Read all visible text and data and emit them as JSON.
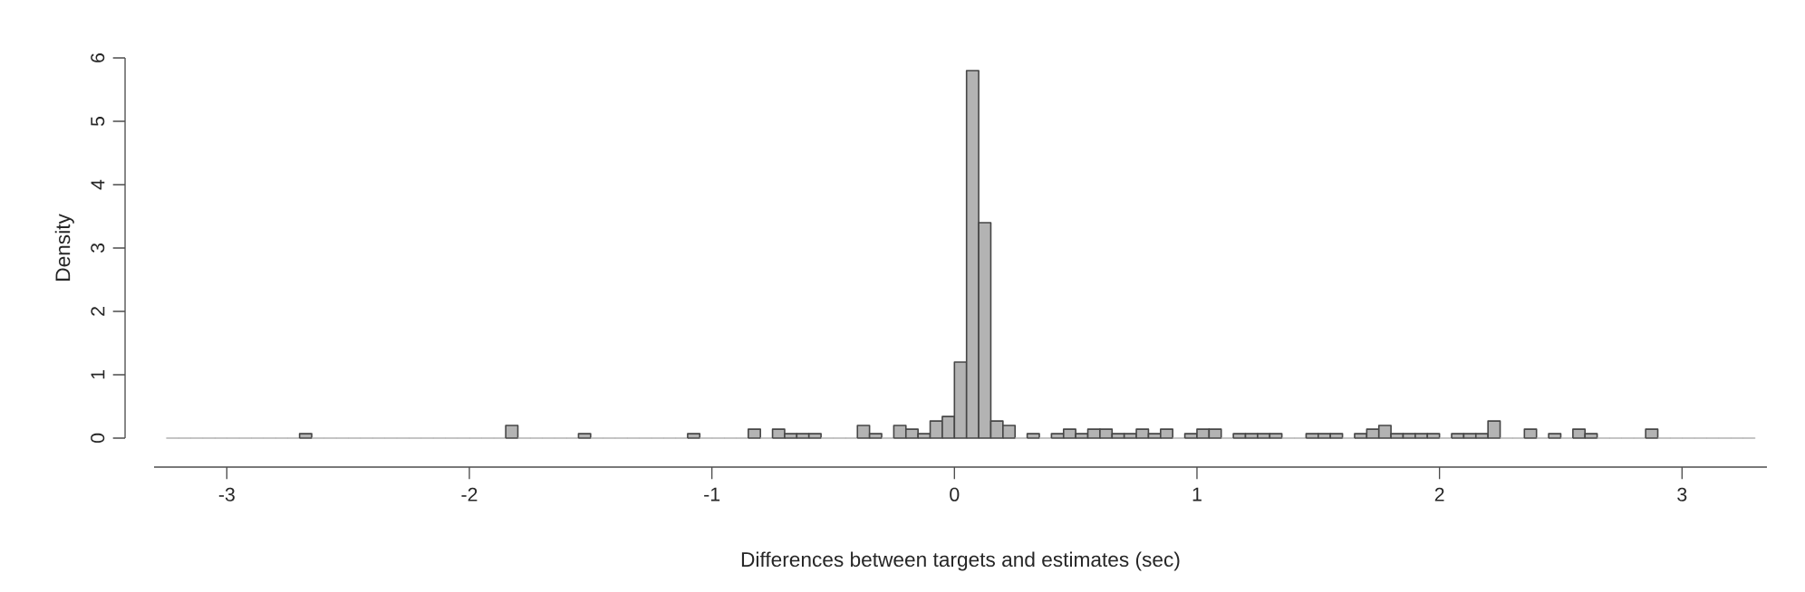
{
  "chart_data": {
    "type": "histogram",
    "xlabel": "Differences between targets and estimates (sec)",
    "ylabel": "Density",
    "color": "#b3b3b3",
    "bins": [
      -3.25,
      -3.2,
      -3.15,
      -3.1,
      -3.05,
      -3.0,
      -2.95,
      -2.9,
      -2.85,
      -2.8,
      -2.75,
      -2.7,
      -2.65,
      -2.6,
      -2.55,
      -2.5,
      -2.45,
      -2.4,
      -2.35,
      -2.3,
      -2.25,
      -2.2,
      -2.15,
      -2.1,
      -2.05,
      -2.0,
      -1.95,
      -1.9,
      -1.85,
      -1.8,
      -1.75,
      -1.7,
      -1.65,
      -1.6,
      -1.55,
      -1.5,
      -1.45,
      -1.4,
      -1.35,
      -1.3,
      -1.25,
      -1.2,
      -1.15,
      -1.1,
      -1.05,
      -1.0,
      -0.95,
      -0.9,
      -0.85,
      -0.8,
      -0.75,
      -0.7,
      -0.65,
      -0.6,
      -0.55,
      -0.5,
      -0.45,
      -0.4,
      -0.35,
      -0.3,
      -0.25,
      -0.2,
      -0.15,
      -0.1,
      -0.05,
      0.0,
      0.05,
      0.1,
      0.15,
      0.2,
      0.25,
      0.3,
      0.35,
      0.4,
      0.45,
      0.5,
      0.55,
      0.6,
      0.65,
      0.7,
      0.75,
      0.8,
      0.85,
      0.9,
      0.95,
      1.0,
      1.05,
      1.1,
      1.15,
      1.2,
      1.25,
      1.3,
      1.35,
      1.4,
      1.45,
      1.5,
      1.55,
      1.6,
      1.65,
      1.7,
      1.75,
      1.8,
      1.85,
      1.9,
      1.95,
      2.0,
      2.05,
      2.1,
      2.15,
      2.2,
      2.25,
      2.3,
      2.35,
      2.4,
      2.45,
      2.5,
      2.55,
      2.6,
      2.65,
      2.7,
      2.75,
      2.8,
      2.85,
      2.9,
      2.95,
      3.0,
      3.05,
      3.1,
      3.15,
      3.2,
      3.25,
      3.3
    ],
    "values": [
      0,
      0,
      0,
      0,
      0,
      0,
      0,
      0,
      0,
      0,
      0,
      0.07,
      0,
      0,
      0,
      0,
      0,
      0,
      0,
      0,
      0,
      0,
      0,
      0,
      0,
      0,
      0,
      0,
      0.2,
      0,
      0,
      0,
      0,
      0,
      0.07,
      0,
      0,
      0,
      0,
      0,
      0,
      0,
      0,
      0.07,
      0,
      0,
      0,
      0,
      0.14,
      0,
      0.14,
      0.07,
      0.07,
      0.07,
      0,
      0,
      0,
      0.2,
      0.07,
      0,
      0.2,
      0.14,
      0.07,
      0.27,
      0.34,
      1.2,
      5.8,
      3.4,
      0.27,
      0.2,
      0,
      0.07,
      0,
      0.07,
      0.14,
      0.07,
      0.14,
      0.14,
      0.07,
      0.07,
      0.14,
      0.07,
      0.14,
      0,
      0.07,
      0.14,
      0.14,
      0,
      0.07,
      0.07,
      0.07,
      0.07,
      0,
      0,
      0.07,
      0.07,
      0.07,
      0,
      0.07,
      0.14,
      0.2,
      0.07,
      0.07,
      0.07,
      0.07,
      0,
      0.07,
      0.07,
      0.07,
      0.27,
      0,
      0,
      0.14,
      0,
      0.07,
      0,
      0.14,
      0.07,
      0,
      0,
      0,
      0,
      0.14,
      0,
      0,
      0,
      0,
      0,
      0,
      0,
      0
    ],
    "xlim": [
      -3.3,
      3.35
    ],
    "xticks": [
      -3,
      -2,
      -1,
      0,
      1,
      2,
      3
    ],
    "ylim": [
      0,
      6
    ],
    "yticks": [
      0,
      1,
      2,
      3,
      4,
      5,
      6
    ]
  }
}
